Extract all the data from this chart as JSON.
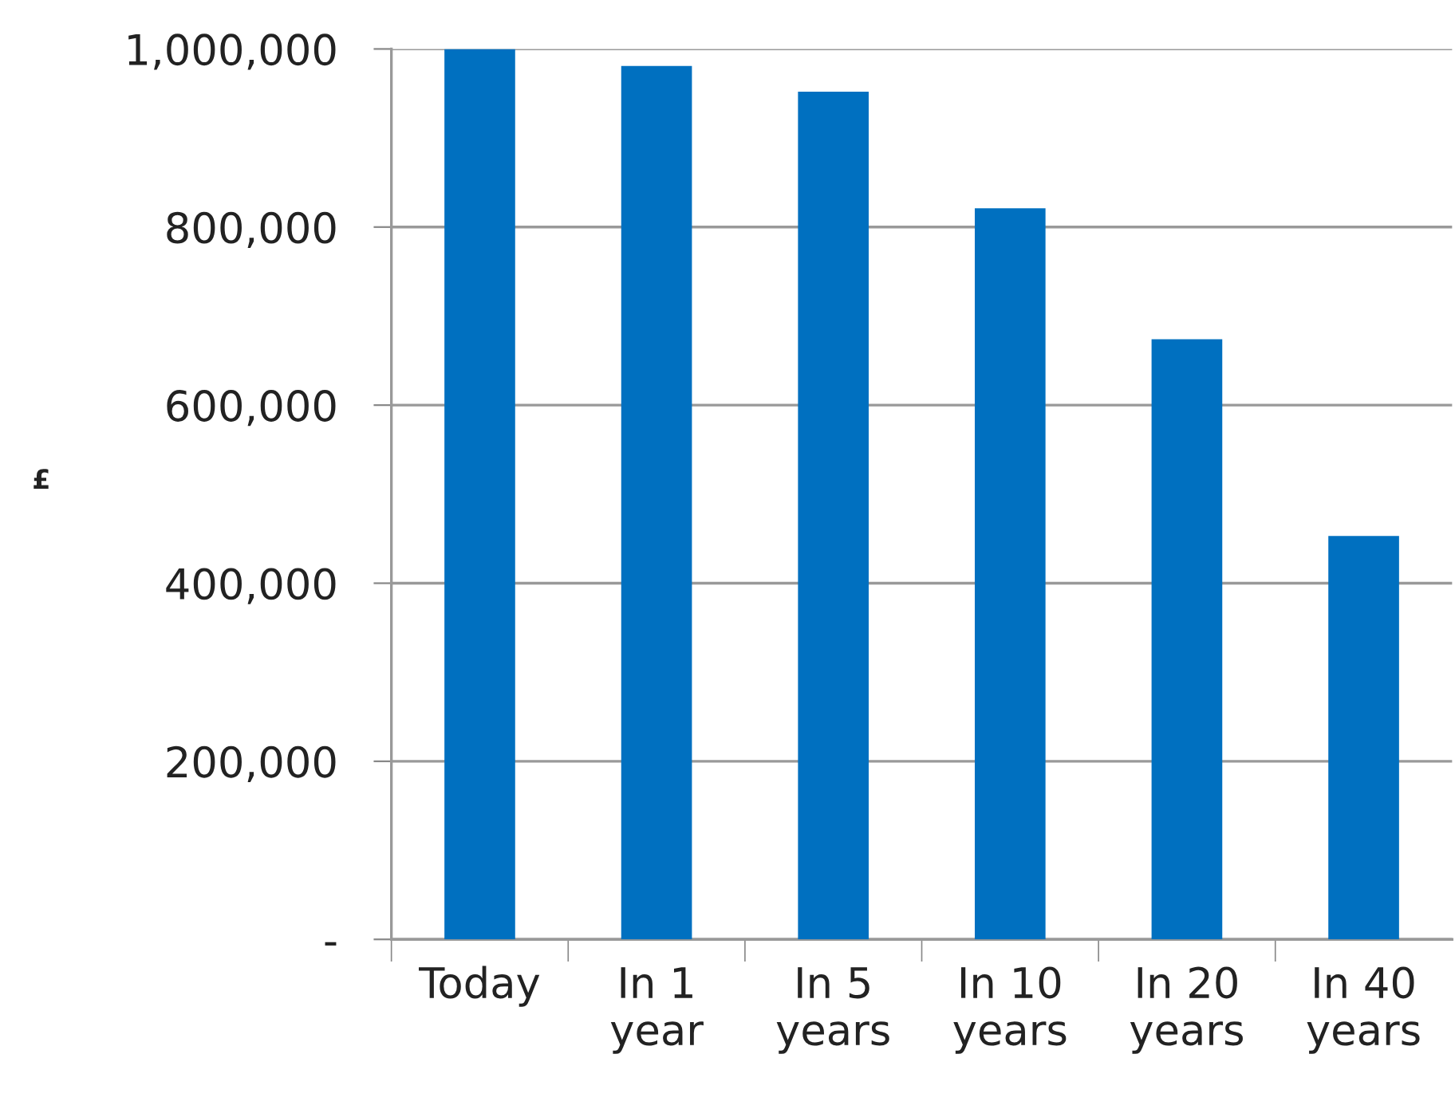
{
  "chart_data": {
    "type": "bar",
    "ylabel": "£",
    "categories": [
      "Today",
      "In 1 year",
      "In 5 years",
      "In 10 years",
      "In 20 years",
      "In 40 years"
    ],
    "values": [
      1000000,
      981000,
      952000,
      821000,
      674000,
      453000
    ],
    "color": "#0070c0",
    "ylim": [
      0,
      1000000
    ],
    "yticks": [
      {
        "value": 0,
        "label": "-"
      },
      {
        "value": 200000,
        "label": "200,000"
      },
      {
        "value": 400000,
        "label": "400,000"
      },
      {
        "value": 600000,
        "label": "600,000"
      },
      {
        "value": 800000,
        "label": "800,000"
      },
      {
        "value": 1000000,
        "label": "1,000,000"
      }
    ],
    "grid": "y",
    "legend": false
  }
}
